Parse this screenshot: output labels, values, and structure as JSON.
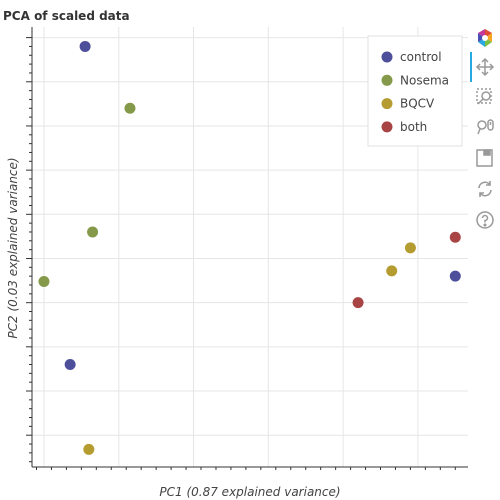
{
  "chart_data": {
    "type": "scatter",
    "title": "PCA of scaled data",
    "xlabel": "PC1 (0.87 explained variance)",
    "ylabel": "PC2 (0.03 explained variance)",
    "legend_position": "top-right",
    "grid": true,
    "series": [
      {
        "name": "control",
        "color": "#4e4f9a",
        "points": [
          [
            -4.9,
            1.2
          ],
          [
            -5.3,
            -0.6
          ],
          [
            5.0,
            -0.1
          ]
        ]
      },
      {
        "name": "Nosema",
        "color": "#85994a",
        "points": [
          [
            -3.7,
            0.85
          ],
          [
            -4.7,
            0.15
          ],
          [
            -6.0,
            -0.13
          ]
        ]
      },
      {
        "name": "BQCV",
        "color": "#b59c30",
        "points": [
          [
            -4.8,
            -1.08
          ],
          [
            3.3,
            -0.07
          ],
          [
            3.8,
            0.06
          ]
        ]
      },
      {
        "name": "both",
        "color": "#a84444",
        "points": [
          [
            2.4,
            -0.25
          ],
          [
            5.0,
            0.12
          ]
        ]
      }
    ]
  },
  "toolbar": {
    "tools": [
      "bokeh-logo-icon",
      "pan-icon",
      "box-zoom-icon",
      "wheel-zoom-icon",
      "save-icon",
      "reset-icon",
      "help-icon"
    ]
  }
}
